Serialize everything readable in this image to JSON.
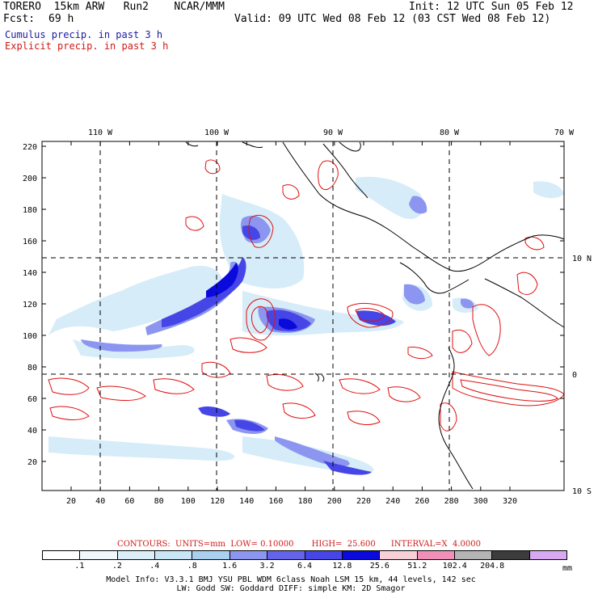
{
  "header": {
    "model": "TORERO  15km ARW   Run2    NCAR/MMM",
    "init": "Init: 12 UTC Sun 05 Feb 12",
    "fcst_label": "Fcst:",
    "fcst_value": "69 h",
    "valid": "Valid: 09 UTC Wed 08 Feb 12 (03 CST Wed 08 Feb 12)",
    "line_cumulus": "Cumulus precip. in past 3 h",
    "line_explicit": "Explicit precip. in past 3 h"
  },
  "map": {
    "top_lon_labels": [
      "110 W",
      "100 W",
      "90 W",
      "80 W",
      "70 W"
    ],
    "right_lat_labels": [
      "10 N",
      "0",
      "10 S"
    ],
    "y_grid_labels": [
      "220",
      "200",
      "180",
      "160",
      "140",
      "120",
      "100",
      "80",
      "60",
      "40",
      "20"
    ],
    "x_grid_labels": [
      "20",
      "40",
      "60",
      "80",
      "100",
      "120",
      "140",
      "160",
      "180",
      "200",
      "220",
      "240",
      "260",
      "280",
      "300",
      "320"
    ],
    "colors": {
      "cumulus_light": "#c8e6f5",
      "cumulus_mid": "#8c96f0",
      "cumulus_strong": "#4646e6",
      "cumulus_dark": "#0a0adc",
      "explicit_contour": "#e01010",
      "coast": "#000000"
    }
  },
  "contours": {
    "caption": "CONTOURS:  UNITS=mm  LOW= 0.10000       HIGH=  25.600      INTERVAL=X  4.0000"
  },
  "legend": {
    "labels": [
      ".1",
      ".2",
      ".4",
      ".8",
      "1.6",
      "3.2",
      "6.4",
      "12.8",
      "25.6",
      "51.2",
      "102.4",
      "204.8"
    ],
    "unit": "mm",
    "colors": [
      "#ffffff",
      "#f0f8fc",
      "#dceef8",
      "#c8e6f5",
      "#aad0f0",
      "#8c96f0",
      "#6464ea",
      "#4646e6",
      "#0a0adc",
      "#f8d0d8",
      "#f090b8",
      "#b4b4b4",
      "#3c3c3c",
      "#d8a8f0"
    ]
  },
  "footer": {
    "line1": "Model Info: V3.3.1   BMJ    YSU PBL  WDM 6class  Noah LSM  15 km,   44 levels,  142 sec",
    "line2": "LW: Godd SW: Goddard DIFF: simple KM: 2D Smagor"
  }
}
